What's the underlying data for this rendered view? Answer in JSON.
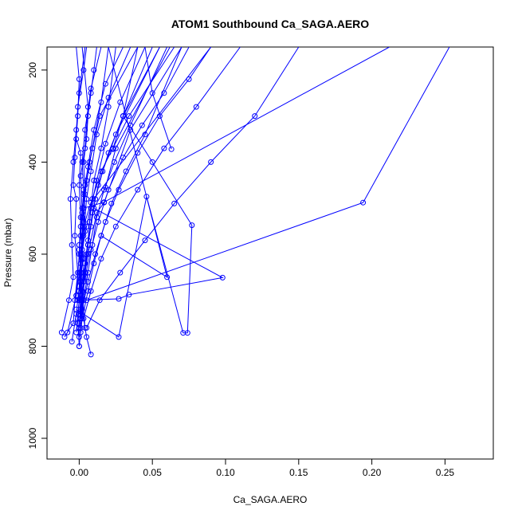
{
  "chart_data": {
    "type": "line",
    "title": "ATOM1 Southbound Ca_SAGA.AERO",
    "xlabel": "Ca_SAGA.AERO",
    "ylabel": "Pressure (mbar)",
    "xlim": [
      -0.022,
      0.283
    ],
    "ylim": [
      1045,
      150
    ],
    "y_reversed": true,
    "x_ticks": [
      0.0,
      0.05,
      0.1,
      0.15,
      0.2,
      0.25
    ],
    "x_tick_labels": [
      "0.00",
      "0.05",
      "0.10",
      "0.15",
      "0.20",
      "0.25"
    ],
    "y_ticks": [
      200,
      400,
      600,
      800,
      1000
    ],
    "y_tick_labels": [
      "200",
      "400",
      "600",
      "800",
      "1000"
    ],
    "grid": false,
    "series_color": "#0000ff",
    "series": [
      {
        "points": [
          {
            "x": 0.002,
            "y": 700
          },
          {
            "x": 0.003,
            "y": 650
          },
          {
            "x": 0.002,
            "y": 600
          },
          {
            "x": 0.004,
            "y": 550
          },
          {
            "x": 0.003,
            "y": 500
          },
          {
            "x": 0.004,
            "y": 450
          },
          {
            "x": 0.003,
            "y": 400
          },
          {
            "x": 0.005,
            "y": 350
          },
          {
            "x": 0.006,
            "y": 300
          },
          {
            "x": 0.008,
            "y": 250
          },
          {
            "x": 0.01,
            "y": 200
          },
          {
            "x": 0.012,
            "y": 150
          }
        ]
      },
      {
        "points": [
          {
            "x": -0.008,
            "y": 770
          },
          {
            "x": -0.002,
            "y": 690
          },
          {
            "x": 0.0,
            "y": 600
          },
          {
            "x": 0.001,
            "y": 520
          },
          {
            "x": 0.0,
            "y": 450
          },
          {
            "x": 0.001,
            "y": 380
          },
          {
            "x": -0.002,
            "y": 350
          },
          {
            "x": -0.001,
            "y": 280
          },
          {
            "x": 0.003,
            "y": 200
          },
          {
            "x": 0.005,
            "y": 150
          }
        ]
      },
      {
        "points": [
          {
            "x": -0.01,
            "y": 780
          },
          {
            "x": -0.004,
            "y": 750
          },
          {
            "x": -0.003,
            "y": 700
          },
          {
            "x": -0.001,
            "y": 640
          },
          {
            "x": -0.003,
            "y": 560
          },
          {
            "x": -0.002,
            "y": 480
          },
          {
            "x": -0.004,
            "y": 450
          },
          {
            "x": -0.003,
            "y": 390
          },
          {
            "x": -0.001,
            "y": 300
          },
          {
            "x": 0.0,
            "y": 220
          },
          {
            "x": -0.002,
            "y": 150
          }
        ]
      },
      {
        "points": [
          {
            "x": 0.0,
            "y": 800
          },
          {
            "x": -0.001,
            "y": 740
          },
          {
            "x": 0.001,
            "y": 660
          },
          {
            "x": 0.0,
            "y": 580
          },
          {
            "x": 0.002,
            "y": 510
          },
          {
            "x": 0.001,
            "y": 430
          },
          {
            "x": 0.004,
            "y": 370
          },
          {
            "x": 0.006,
            "y": 280
          },
          {
            "x": 0.002,
            "y": 150
          }
        ]
      },
      {
        "points": [
          {
            "x": 0.008,
            "y": 818
          },
          {
            "x": 0.005,
            "y": 780
          },
          {
            "x": 0.002,
            "y": 720
          },
          {
            "x": 0.004,
            "y": 640
          },
          {
            "x": 0.006,
            "y": 580
          },
          {
            "x": 0.007,
            "y": 530
          },
          {
            "x": 0.01,
            "y": 440
          },
          {
            "x": 0.015,
            "y": 370
          },
          {
            "x": 0.02,
            "y": 280
          },
          {
            "x": 0.025,
            "y": 150
          }
        ]
      },
      {
        "points": [
          {
            "x": -0.012,
            "y": 770
          },
          {
            "x": -0.007,
            "y": 700
          },
          {
            "x": -0.004,
            "y": 650
          },
          {
            "x": -0.005,
            "y": 580
          },
          {
            "x": -0.006,
            "y": 480
          },
          {
            "x": -0.004,
            "y": 400
          },
          {
            "x": -0.002,
            "y": 330
          },
          {
            "x": 0.0,
            "y": 250
          },
          {
            "x": 0.004,
            "y": 150
          }
        ]
      },
      {
        "points": [
          {
            "x": 0.001,
            "y": 770
          },
          {
            "x": 0.002,
            "y": 700
          },
          {
            "x": 0.001,
            "y": 620
          },
          {
            "x": 0.003,
            "y": 560
          },
          {
            "x": 0.005,
            "y": 480
          },
          {
            "x": 0.008,
            "y": 420
          },
          {
            "x": 0.012,
            "y": 340
          },
          {
            "x": 0.02,
            "y": 260
          },
          {
            "x": 0.035,
            "y": 150
          }
        ]
      },
      {
        "points": [
          {
            "x": 0.0,
            "y": 760
          },
          {
            "x": 0.001,
            "y": 690
          },
          {
            "x": 0.002,
            "y": 610
          },
          {
            "x": 0.001,
            "y": 540
          },
          {
            "x": 0.003,
            "y": 470
          },
          {
            "x": 0.006,
            "y": 410
          },
          {
            "x": 0.01,
            "y": 330
          },
          {
            "x": 0.018,
            "y": 230
          },
          {
            "x": 0.03,
            "y": 150
          }
        ]
      },
      {
        "points": [
          {
            "x": -0.005,
            "y": 790
          },
          {
            "x": -0.002,
            "y": 730
          },
          {
            "x": 0.0,
            "y": 670
          },
          {
            "x": 0.001,
            "y": 600
          },
          {
            "x": 0.003,
            "y": 530
          },
          {
            "x": 0.004,
            "y": 470
          },
          {
            "x": 0.007,
            "y": 400
          },
          {
            "x": 0.014,
            "y": 300
          },
          {
            "x": 0.04,
            "y": 150
          }
        ]
      },
      {
        "points": [
          {
            "x": 0.001,
            "y": 740
          },
          {
            "x": 0.002,
            "y": 680
          },
          {
            "x": 0.004,
            "y": 620
          },
          {
            "x": 0.006,
            "y": 570
          },
          {
            "x": 0.008,
            "y": 500
          },
          {
            "x": 0.012,
            "y": 440
          },
          {
            "x": 0.018,
            "y": 360
          },
          {
            "x": 0.028,
            "y": 270
          },
          {
            "x": 0.045,
            "y": 150
          }
        ]
      },
      {
        "points": [
          {
            "x": -0.002,
            "y": 770
          },
          {
            "x": 0.0,
            "y": 700
          },
          {
            "x": 0.003,
            "y": 640
          },
          {
            "x": 0.006,
            "y": 580
          },
          {
            "x": 0.009,
            "y": 510
          },
          {
            "x": 0.013,
            "y": 450
          },
          {
            "x": 0.02,
            "y": 380
          },
          {
            "x": 0.03,
            "y": 300
          },
          {
            "x": 0.05,
            "y": 150
          }
        ]
      },
      {
        "points": [
          {
            "x": 0.0,
            "y": 780
          },
          {
            "x": 0.001,
            "y": 720
          },
          {
            "x": 0.003,
            "y": 660
          },
          {
            "x": 0.005,
            "y": 600
          },
          {
            "x": 0.008,
            "y": 540
          },
          {
            "x": 0.011,
            "y": 480
          },
          {
            "x": 0.016,
            "y": 420
          },
          {
            "x": 0.025,
            "y": 340
          },
          {
            "x": 0.055,
            "y": 150
          }
        ]
      },
      {
        "points": [
          {
            "x": 0.001,
            "y": 760
          },
          {
            "x": 0.003,
            "y": 700
          },
          {
            "x": 0.006,
            "y": 640
          },
          {
            "x": 0.009,
            "y": 580
          },
          {
            "x": 0.012,
            "y": 520
          },
          {
            "x": 0.017,
            "y": 460
          },
          {
            "x": 0.024,
            "y": 400
          },
          {
            "x": 0.035,
            "y": 320
          },
          {
            "x": 0.06,
            "y": 150
          }
        ]
      },
      {
        "points": [
          {
            "x": -0.002,
            "y": 690
          },
          {
            "x": 0.0,
            "y": 640
          },
          {
            "x": 0.002,
            "y": 590
          },
          {
            "x": 0.005,
            "y": 540
          },
          {
            "x": 0.009,
            "y": 480
          },
          {
            "x": 0.015,
            "y": 420
          },
          {
            "x": 0.023,
            "y": 370
          },
          {
            "x": 0.034,
            "y": 300
          },
          {
            "x": 0.065,
            "y": 150
          }
        ]
      },
      {
        "points": [
          {
            "x": 0.0,
            "y": 800
          },
          {
            "x": 0.002,
            "y": 740
          },
          {
            "x": 0.006,
            "y": 680
          },
          {
            "x": 0.01,
            "y": 620
          },
          {
            "x": 0.015,
            "y": 560
          },
          {
            "x": 0.022,
            "y": 490
          },
          {
            "x": 0.032,
            "y": 420
          },
          {
            "x": 0.045,
            "y": 340
          },
          {
            "x": 0.07,
            "y": 150
          }
        ]
      },
      {
        "points": [
          {
            "x": 0.001,
            "y": 700
          },
          {
            "x": 0.004,
            "y": 650
          },
          {
            "x": 0.008,
            "y": 590
          },
          {
            "x": 0.013,
            "y": 530
          },
          {
            "x": 0.02,
            "y": 460
          },
          {
            "x": 0.03,
            "y": 390
          },
          {
            "x": 0.043,
            "y": 320
          },
          {
            "x": 0.058,
            "y": 250
          },
          {
            "x": 0.075,
            "y": 150
          }
        ]
      },
      {
        "points": [
          {
            "x": 0.002,
            "y": 720
          },
          {
            "x": 0.006,
            "y": 660
          },
          {
            "x": 0.011,
            "y": 600
          },
          {
            "x": 0.018,
            "y": 530
          },
          {
            "x": 0.027,
            "y": 460
          },
          {
            "x": 0.04,
            "y": 380
          },
          {
            "x": 0.055,
            "y": 300
          },
          {
            "x": 0.075,
            "y": 220
          },
          {
            "x": 0.09,
            "y": 150
          }
        ]
      },
      {
        "points": [
          {
            "x": 0.003,
            "y": 740
          },
          {
            "x": 0.008,
            "y": 680
          },
          {
            "x": 0.015,
            "y": 610
          },
          {
            "x": 0.025,
            "y": 540
          },
          {
            "x": 0.04,
            "y": 460
          },
          {
            "x": 0.058,
            "y": 370
          },
          {
            "x": 0.08,
            "y": 280
          },
          {
            "x": 0.11,
            "y": 150
          }
        ]
      },
      {
        "points": [
          {
            "x": 0.005,
            "y": 760
          },
          {
            "x": 0.014,
            "y": 700
          },
          {
            "x": 0.028,
            "y": 640
          },
          {
            "x": 0.045,
            "y": 570
          },
          {
            "x": 0.065,
            "y": 490
          },
          {
            "x": 0.09,
            "y": 400
          },
          {
            "x": 0.12,
            "y": 300
          },
          {
            "x": 0.15,
            "y": 150
          }
        ]
      },
      {
        "points": [
          {
            "x": 0.0,
            "y": 730
          },
          {
            "x": 0.002,
            "y": 690
          },
          {
            "x": 0.0,
            "y": 650
          },
          {
            "x": 0.003,
            "y": 610
          },
          {
            "x": 0.001,
            "y": 560
          },
          {
            "x": 0.002,
            "y": 500
          },
          {
            "x": 0.005,
            "y": 440
          },
          {
            "x": 0.009,
            "y": 370
          },
          {
            "x": 0.015,
            "y": 270
          },
          {
            "x": 0.02,
            "y": 150
          }
        ]
      },
      {
        "points": [
          {
            "x": -0.001,
            "y": 750
          },
          {
            "x": 0.0,
            "y": 700
          },
          {
            "x": 0.001,
            "y": 640
          },
          {
            "x": 0.0,
            "y": 590
          },
          {
            "x": 0.002,
            "y": 520
          },
          {
            "x": 0.003,
            "y": 460
          },
          {
            "x": 0.002,
            "y": 400
          },
          {
            "x": 0.004,
            "y": 330
          },
          {
            "x": 0.008,
            "y": 240
          },
          {
            "x": 0.015,
            "y": 150
          }
        ]
      },
      {
        "points": [
          {
            "x": 0.063,
            "y": 372
          },
          {
            "x": 0.05,
            "y": 250
          },
          {
            "x": 0.045,
            "y": 150
          }
        ]
      },
      {
        "points": [
          {
            "x": 0.023,
            "y": 372
          },
          {
            "x": 0.03,
            "y": 300
          },
          {
            "x": 0.04,
            "y": 150
          }
        ]
      },
      {
        "points": [
          {
            "x": -0.001,
            "y": 700
          },
          {
            "x": 0.027,
            "y": 697
          },
          {
            "x": 0.034,
            "y": 688
          },
          {
            "x": 0.098,
            "y": 651
          },
          {
            "x": 0.01,
            "y": 500
          },
          {
            "x": 0.018,
            "y": 455
          },
          {
            "x": 0.025,
            "y": 370
          },
          {
            "x": 0.062,
            "y": 150
          }
        ]
      },
      {
        "points": [
          {
            "x": -0.002,
            "y": 720
          },
          {
            "x": 0.027,
            "y": 780
          },
          {
            "x": 0.046,
            "y": 475
          },
          {
            "x": 0.071,
            "y": 771
          },
          {
            "x": 0.074,
            "y": 771
          },
          {
            "x": 0.077,
            "y": 537
          },
          {
            "x": 0.05,
            "y": 400
          },
          {
            "x": 0.03,
            "y": 300
          },
          {
            "x": 0.055,
            "y": 150
          }
        ]
      },
      {
        "points": [
          {
            "x": 0.015,
            "y": 560
          },
          {
            "x": 0.06,
            "y": 650
          },
          {
            "x": 0.02,
            "y": 150
          }
        ]
      },
      {
        "points": [
          {
            "x": 0.005,
            "y": 700
          },
          {
            "x": 0.194,
            "y": 488
          },
          {
            "x": 0.253,
            "y": 150
          }
        ]
      },
      {
        "points": [
          {
            "x": 0.001,
            "y": 600
          },
          {
            "x": 0.003,
            "y": 500
          },
          {
            "x": 0.017,
            "y": 487
          },
          {
            "x": 0.212,
            "y": 150
          }
        ]
      },
      {
        "points": [
          {
            "x": 0.0,
            "y": 680
          },
          {
            "x": 0.003,
            "y": 540
          },
          {
            "x": 0.008,
            "y": 488
          },
          {
            "x": 0.09,
            "y": 150
          }
        ]
      },
      {
        "points": [
          {
            "x": 0.004,
            "y": 760
          },
          {
            "x": 0.002,
            "y": 680
          },
          {
            "x": 0.006,
            "y": 600
          },
          {
            "x": 0.012,
            "y": 510
          },
          {
            "x": 0.017,
            "y": 488
          },
          {
            "x": 0.035,
            "y": 330
          },
          {
            "x": 0.07,
            "y": 150
          }
        ]
      }
    ]
  }
}
